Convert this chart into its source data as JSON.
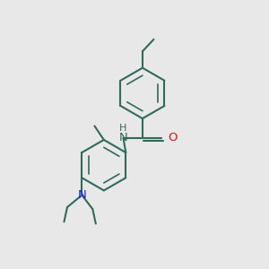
{
  "bg_color": "#e8e8e8",
  "bond_color": "#2d6b5a",
  "nitrogen_color": "#1a1aff",
  "oxygen_color": "#cc1a1a",
  "lw": 1.5,
  "lw_inner": 1.2,
  "figsize": [
    3.0,
    3.0
  ],
  "dpi": 100,
  "xlim": [
    0,
    10
  ],
  "ylim": [
    0,
    10
  ]
}
